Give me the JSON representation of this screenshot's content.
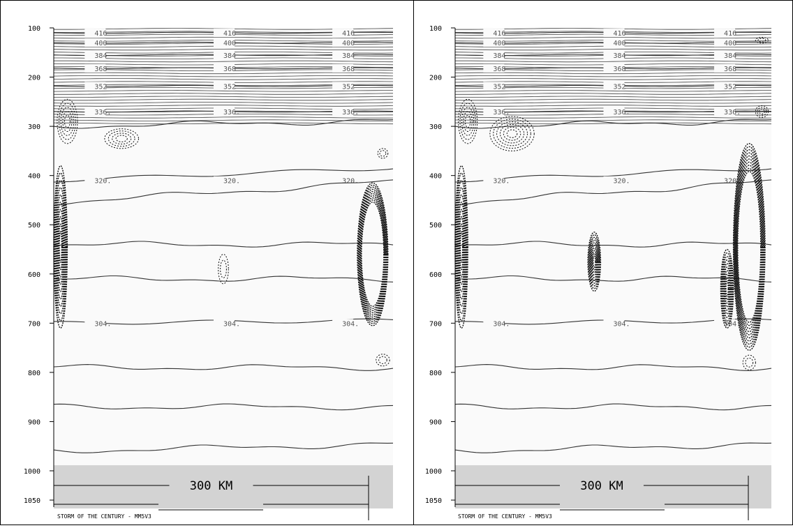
{
  "chart_data": [
    {
      "type": "contour",
      "y_axis": {
        "ticks": [
          "100",
          "200",
          "300",
          "400",
          "500",
          "600",
          "700",
          "800",
          "900",
          "1000",
          "1050"
        ],
        "values": [
          100,
          200,
          300,
          400,
          500,
          600,
          700,
          800,
          900,
          1000,
          1050
        ]
      },
      "isentrope_labels": [
        "416",
        "400",
        "384",
        "368",
        "352",
        "336.",
        "320.",
        "304."
      ],
      "labeled_isentropes": [
        {
          "level": "416",
          "p": 110
        },
        {
          "level": "400",
          "p": 130
        },
        {
          "level": "384",
          "p": 155
        },
        {
          "level": "368",
          "p": 182
        },
        {
          "level": "352",
          "p": 218
        },
        {
          "level": "336.",
          "p": 270
        },
        {
          "level": "320.",
          "p": 410
        },
        {
          "level": "304.",
          "p": 700
        }
      ],
      "unlabeled_isentropes_p": [
        300,
        455,
        540,
        610,
        790,
        870,
        960
      ],
      "scale_bar_label": "300 KM",
      "caption": "STORM OF THE CENTURY - MM5V3",
      "dashed_features": [
        {
          "cx": 0.04,
          "p": 290,
          "rx": 0.03,
          "ry": 45,
          "n": 5
        },
        {
          "cx": 0.2,
          "p": 325,
          "rx": 0.05,
          "ry": 20,
          "n": 4
        },
        {
          "cx": 0.5,
          "p": 590,
          "rx": 0.015,
          "ry": 30,
          "n": 2
        },
        {
          "cx": 0.97,
          "p": 355,
          "rx": 0.015,
          "ry": 10,
          "n": 2
        },
        {
          "cx": 0.97,
          "p": 775,
          "rx": 0.02,
          "ry": 12,
          "n": 2
        }
      ],
      "dense_features": [
        {
          "cx": 0.02,
          "p": 545,
          "rx": 0.02,
          "ry": 165
        },
        {
          "cx": 0.94,
          "p": 560,
          "rx": 0.045,
          "ry": 145,
          "ring": true
        }
      ]
    },
    {
      "type": "contour",
      "y_axis": {
        "ticks": [
          "100",
          "200",
          "300",
          "400",
          "500",
          "600",
          "700",
          "800",
          "900",
          "1000",
          "1050"
        ],
        "values": [
          100,
          200,
          300,
          400,
          500,
          600,
          700,
          800,
          900,
          1000,
          1050
        ]
      },
      "isentrope_labels": [
        "416",
        "400",
        "384",
        "368",
        "352",
        "336.",
        "320.",
        "304."
      ],
      "labeled_isentropes": [
        {
          "level": "416",
          "p": 110
        },
        {
          "level": "400",
          "p": 130
        },
        {
          "level": "384",
          "p": 155
        },
        {
          "level": "368",
          "p": 182
        },
        {
          "level": "352",
          "p": 218
        },
        {
          "level": "336.",
          "p": 270
        },
        {
          "level": "320.",
          "p": 410
        },
        {
          "level": "304.",
          "p": 700
        }
      ],
      "unlabeled_isentropes_p": [
        300,
        455,
        540,
        610,
        790,
        870,
        960
      ],
      "scale_bar_label": "300 KM",
      "caption": "STORM OF THE CENTURY - MM5V3",
      "dashed_features": [
        {
          "cx": 0.04,
          "p": 290,
          "rx": 0.03,
          "ry": 45,
          "n": 5
        },
        {
          "cx": 0.18,
          "p": 315,
          "rx": 0.07,
          "ry": 35,
          "n": 6
        },
        {
          "cx": 0.97,
          "p": 270,
          "rx": 0.02,
          "ry": 12,
          "n": 3
        },
        {
          "cx": 0.97,
          "p": 125,
          "rx": 0.02,
          "ry": 6,
          "n": 2
        },
        {
          "cx": 0.93,
          "p": 780,
          "rx": 0.02,
          "ry": 15,
          "n": 2
        }
      ],
      "dense_features": [
        {
          "cx": 0.02,
          "p": 545,
          "rx": 0.02,
          "ry": 165
        },
        {
          "cx": 0.44,
          "p": 575,
          "rx": 0.02,
          "ry": 60
        },
        {
          "cx": 0.93,
          "p": 545,
          "rx": 0.05,
          "ry": 210,
          "ring": true
        },
        {
          "cx": 0.86,
          "p": 630,
          "rx": 0.02,
          "ry": 80
        }
      ]
    }
  ]
}
